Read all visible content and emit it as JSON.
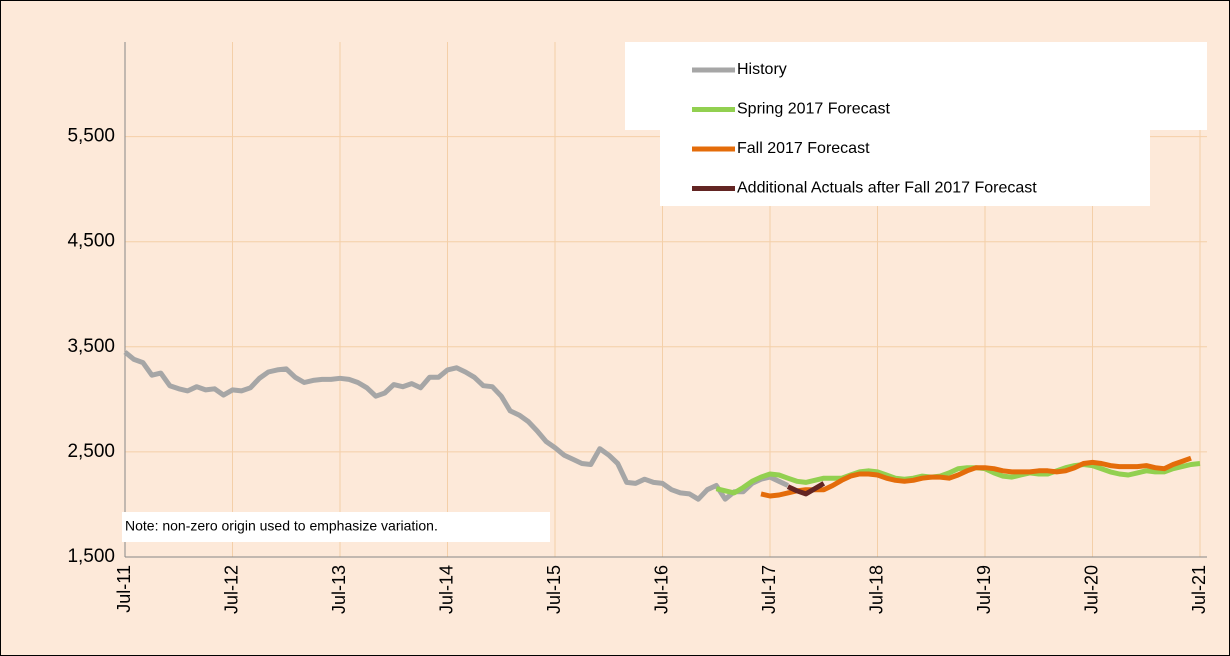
{
  "chart_data": {
    "type": "line",
    "annotation": "Note: non-zero origin used to emphasize variation.",
    "categories": [
      "Jul-11",
      null,
      null,
      null,
      null,
      null,
      null,
      null,
      null,
      null,
      null,
      null,
      "Jul-12",
      null,
      null,
      null,
      null,
      null,
      null,
      null,
      null,
      null,
      null,
      null,
      "Jul-13",
      null,
      null,
      null,
      null,
      null,
      null,
      null,
      null,
      null,
      null,
      null,
      "Jul-14",
      null,
      null,
      null,
      null,
      null,
      null,
      null,
      null,
      null,
      null,
      null,
      "Jul-15",
      null,
      null,
      null,
      null,
      null,
      null,
      null,
      null,
      null,
      null,
      null,
      "Jul-16",
      null,
      null,
      null,
      null,
      null,
      null,
      null,
      null,
      null,
      null,
      null,
      "Jul-17",
      null,
      null,
      null,
      null,
      null,
      null,
      null,
      null,
      null,
      null,
      null,
      "Jul-18",
      null,
      null,
      null,
      null,
      null,
      null,
      null,
      null,
      null,
      null,
      null,
      "Jul-19",
      null,
      null,
      null,
      null,
      null,
      null,
      null,
      null,
      null,
      null,
      null,
      "Jul-20",
      null,
      null,
      null,
      null,
      null,
      null,
      null,
      null,
      null,
      null,
      null,
      "Jul-21"
    ],
    "series": [
      {
        "name": "History",
        "color": "#a6a6a6",
        "values": [
          3450,
          3380,
          3350,
          3230,
          3250,
          3130,
          3100,
          3080,
          3120,
          3090,
          3100,
          3040,
          3090,
          3080,
          3110,
          3200,
          3260,
          3280,
          3290,
          3210,
          3160,
          3180,
          3190,
          3190,
          3200,
          3190,
          3160,
          3110,
          3030,
          3060,
          3140,
          3120,
          3150,
          3110,
          3210,
          3210,
          3280,
          3300,
          3260,
          3210,
          3130,
          3120,
          3030,
          2890,
          2850,
          2790,
          2700,
          2600,
          2540,
          2470,
          2430,
          2390,
          2380,
          2530,
          2470,
          2390,
          2210,
          2200,
          2240,
          2210,
          2200,
          2140,
          2110,
          2100,
          2050,
          2140,
          2180,
          2050,
          2120,
          2120,
          2200,
          2240,
          2260,
          2220,
          2180,
          null,
          null,
          null,
          null,
          null,
          null,
          null,
          null,
          null,
          null,
          null,
          null,
          null,
          null,
          null,
          null,
          null,
          null,
          null,
          null,
          null,
          null,
          null,
          null,
          null,
          null,
          null,
          null,
          null,
          null,
          null,
          null,
          null,
          null,
          null,
          null,
          null,
          null,
          null,
          null,
          null,
          null,
          null,
          null,
          null,
          null
        ]
      },
      {
        "name": "Spring 2017 Forecast",
        "color": "#92d050",
        "values": [
          null,
          null,
          null,
          null,
          null,
          null,
          null,
          null,
          null,
          null,
          null,
          null,
          null,
          null,
          null,
          null,
          null,
          null,
          null,
          null,
          null,
          null,
          null,
          null,
          null,
          null,
          null,
          null,
          null,
          null,
          null,
          null,
          null,
          null,
          null,
          null,
          null,
          null,
          null,
          null,
          null,
          null,
          null,
          null,
          null,
          null,
          null,
          null,
          null,
          null,
          null,
          null,
          null,
          null,
          null,
          null,
          null,
          null,
          null,
          null,
          null,
          null,
          null,
          null,
          null,
          null,
          2150,
          2130,
          2110,
          2160,
          2220,
          2260,
          2290,
          2280,
          2250,
          2220,
          2210,
          2230,
          2250,
          2250,
          2250,
          2280,
          2310,
          2320,
          2310,
          2280,
          2250,
          2240,
          2250,
          2270,
          2260,
          2270,
          2300,
          2340,
          2350,
          2350,
          2340,
          2300,
          2270,
          2260,
          2280,
          2300,
          2290,
          2290,
          2320,
          2350,
          2370,
          2380,
          2370,
          2340,
          2310,
          2290,
          2280,
          2300,
          2320,
          2310,
          2310,
          2340,
          2360,
          2380,
          2390
        ]
      },
      {
        "name": "Fall 2017 Forecast",
        "color": "#e46c0a",
        "values": [
          null,
          null,
          null,
          null,
          null,
          null,
          null,
          null,
          null,
          null,
          null,
          null,
          null,
          null,
          null,
          null,
          null,
          null,
          null,
          null,
          null,
          null,
          null,
          null,
          null,
          null,
          null,
          null,
          null,
          null,
          null,
          null,
          null,
          null,
          null,
          null,
          null,
          null,
          null,
          null,
          null,
          null,
          null,
          null,
          null,
          null,
          null,
          null,
          null,
          null,
          null,
          null,
          null,
          null,
          null,
          null,
          null,
          null,
          null,
          null,
          null,
          null,
          null,
          null,
          null,
          null,
          null,
          null,
          null,
          null,
          null,
          2100,
          2080,
          2090,
          2110,
          2130,
          2140,
          2140,
          2140,
          2180,
          2230,
          2270,
          2290,
          2290,
          2280,
          2250,
          2230,
          2220,
          2230,
          2250,
          2260,
          2260,
          2250,
          2280,
          2320,
          2350,
          2350,
          2340,
          2320,
          2310,
          2310,
          2310,
          2320,
          2320,
          2310,
          2320,
          2350,
          2390,
          2400,
          2390,
          2370,
          2360,
          2360,
          2360,
          2370,
          2350,
          2340,
          2380,
          2410,
          2440,
          null
        ]
      },
      {
        "name": "Additional Actuals after Fall 2017 Forecast",
        "color": "#632523",
        "values": [
          null,
          null,
          null,
          null,
          null,
          null,
          null,
          null,
          null,
          null,
          null,
          null,
          null,
          null,
          null,
          null,
          null,
          null,
          null,
          null,
          null,
          null,
          null,
          null,
          null,
          null,
          null,
          null,
          null,
          null,
          null,
          null,
          null,
          null,
          null,
          null,
          null,
          null,
          null,
          null,
          null,
          null,
          null,
          null,
          null,
          null,
          null,
          null,
          null,
          null,
          null,
          null,
          null,
          null,
          null,
          null,
          null,
          null,
          null,
          null,
          null,
          null,
          null,
          null,
          null,
          null,
          null,
          null,
          null,
          null,
          null,
          null,
          null,
          null,
          2170,
          2130,
          2100,
          2150,
          2200,
          null,
          null,
          null,
          null,
          null,
          null,
          null,
          null,
          null,
          null,
          null,
          null,
          null,
          null,
          null,
          null,
          null,
          null,
          null,
          null,
          null,
          null,
          null,
          null,
          null,
          null,
          null,
          null,
          null,
          null,
          null,
          null,
          null,
          null,
          null,
          null,
          null,
          null,
          null,
          null,
          null,
          null
        ]
      }
    ],
    "ylim": [
      1500,
      6400
    ],
    "yticks": [
      {
        "value": 1500,
        "label": "1,500"
      },
      {
        "value": 2500,
        "label": "2,500"
      },
      {
        "value": 3500,
        "label": "3,500"
      },
      {
        "value": 4500,
        "label": "4,500"
      },
      {
        "value": 5500,
        "label": "5,500"
      }
    ],
    "grid": true,
    "legend": "upper right"
  }
}
